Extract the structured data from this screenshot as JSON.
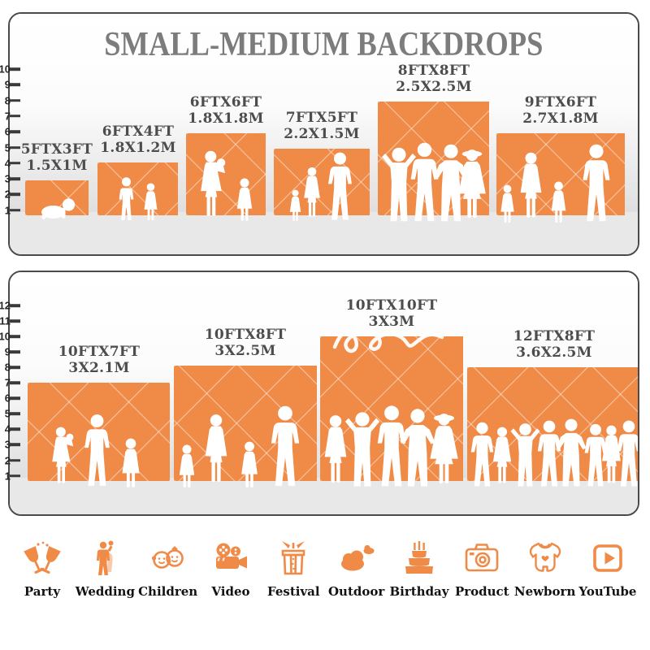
{
  "title": "SMALL-MEDIUM BACKDROPS",
  "panels": [
    {
      "name": "small-medium",
      "ruler": [
        "10",
        "9",
        "8",
        "7",
        "6",
        "5",
        "4",
        "3",
        "2",
        "1"
      ],
      "backdrops": [
        {
          "size_ft": "5FTX3FT",
          "size_m": "1.5X1M"
        },
        {
          "size_ft": "6FTX4FT",
          "size_m": "1.8X1.2M"
        },
        {
          "size_ft": "6FTX6FT",
          "size_m": "1.8X1.8M"
        },
        {
          "size_ft": "7FTX5FT",
          "size_m": "2.2X1.5M"
        },
        {
          "size_ft": "8FTX8FT",
          "size_m": "2.5X2.5M"
        },
        {
          "size_ft": "9FTX6FT",
          "size_m": "2.7X1.8M"
        }
      ]
    },
    {
      "name": "large",
      "ruler": [
        "12",
        "11",
        "10",
        "9",
        "8",
        "7",
        "6",
        "5",
        "4",
        "3",
        "2",
        "1"
      ],
      "backdrops": [
        {
          "size_ft": "10FTX7FT",
          "size_m": "3X2.1M"
        },
        {
          "size_ft": "10FTX8FT",
          "size_m": "3X2.5M"
        },
        {
          "size_ft": "10FTX10FT",
          "size_m": "3X3M"
        },
        {
          "size_ft": "12FTX8FT",
          "size_m": "3.6X2.5M"
        }
      ]
    }
  ],
  "categories": [
    {
      "label": "Party",
      "icon": "party-glasses-icon"
    },
    {
      "label": "Wedding",
      "icon": "wedding-couple-icon"
    },
    {
      "label": "Children",
      "icon": "children-faces-icon"
    },
    {
      "label": "Video",
      "icon": "video-camera-icon"
    },
    {
      "label": "Festival",
      "icon": "festival-gift-icon"
    },
    {
      "label": "Outdoor",
      "icon": "outdoor-cloud-icon"
    },
    {
      "label": "Birthday",
      "icon": "birthday-cake-icon"
    },
    {
      "label": "Product",
      "icon": "product-camera-icon"
    },
    {
      "label": "Newborn",
      "icon": "newborn-onesie-icon"
    },
    {
      "label": "YouTube",
      "icon": "youtube-play-icon"
    }
  ],
  "colors": {
    "accent": "#EF8A47",
    "title_text": "#7C7C7C",
    "label_text": "#4D4D4D",
    "floor": "#E8E8E8",
    "ruler_mark": "#3A3A3A"
  }
}
